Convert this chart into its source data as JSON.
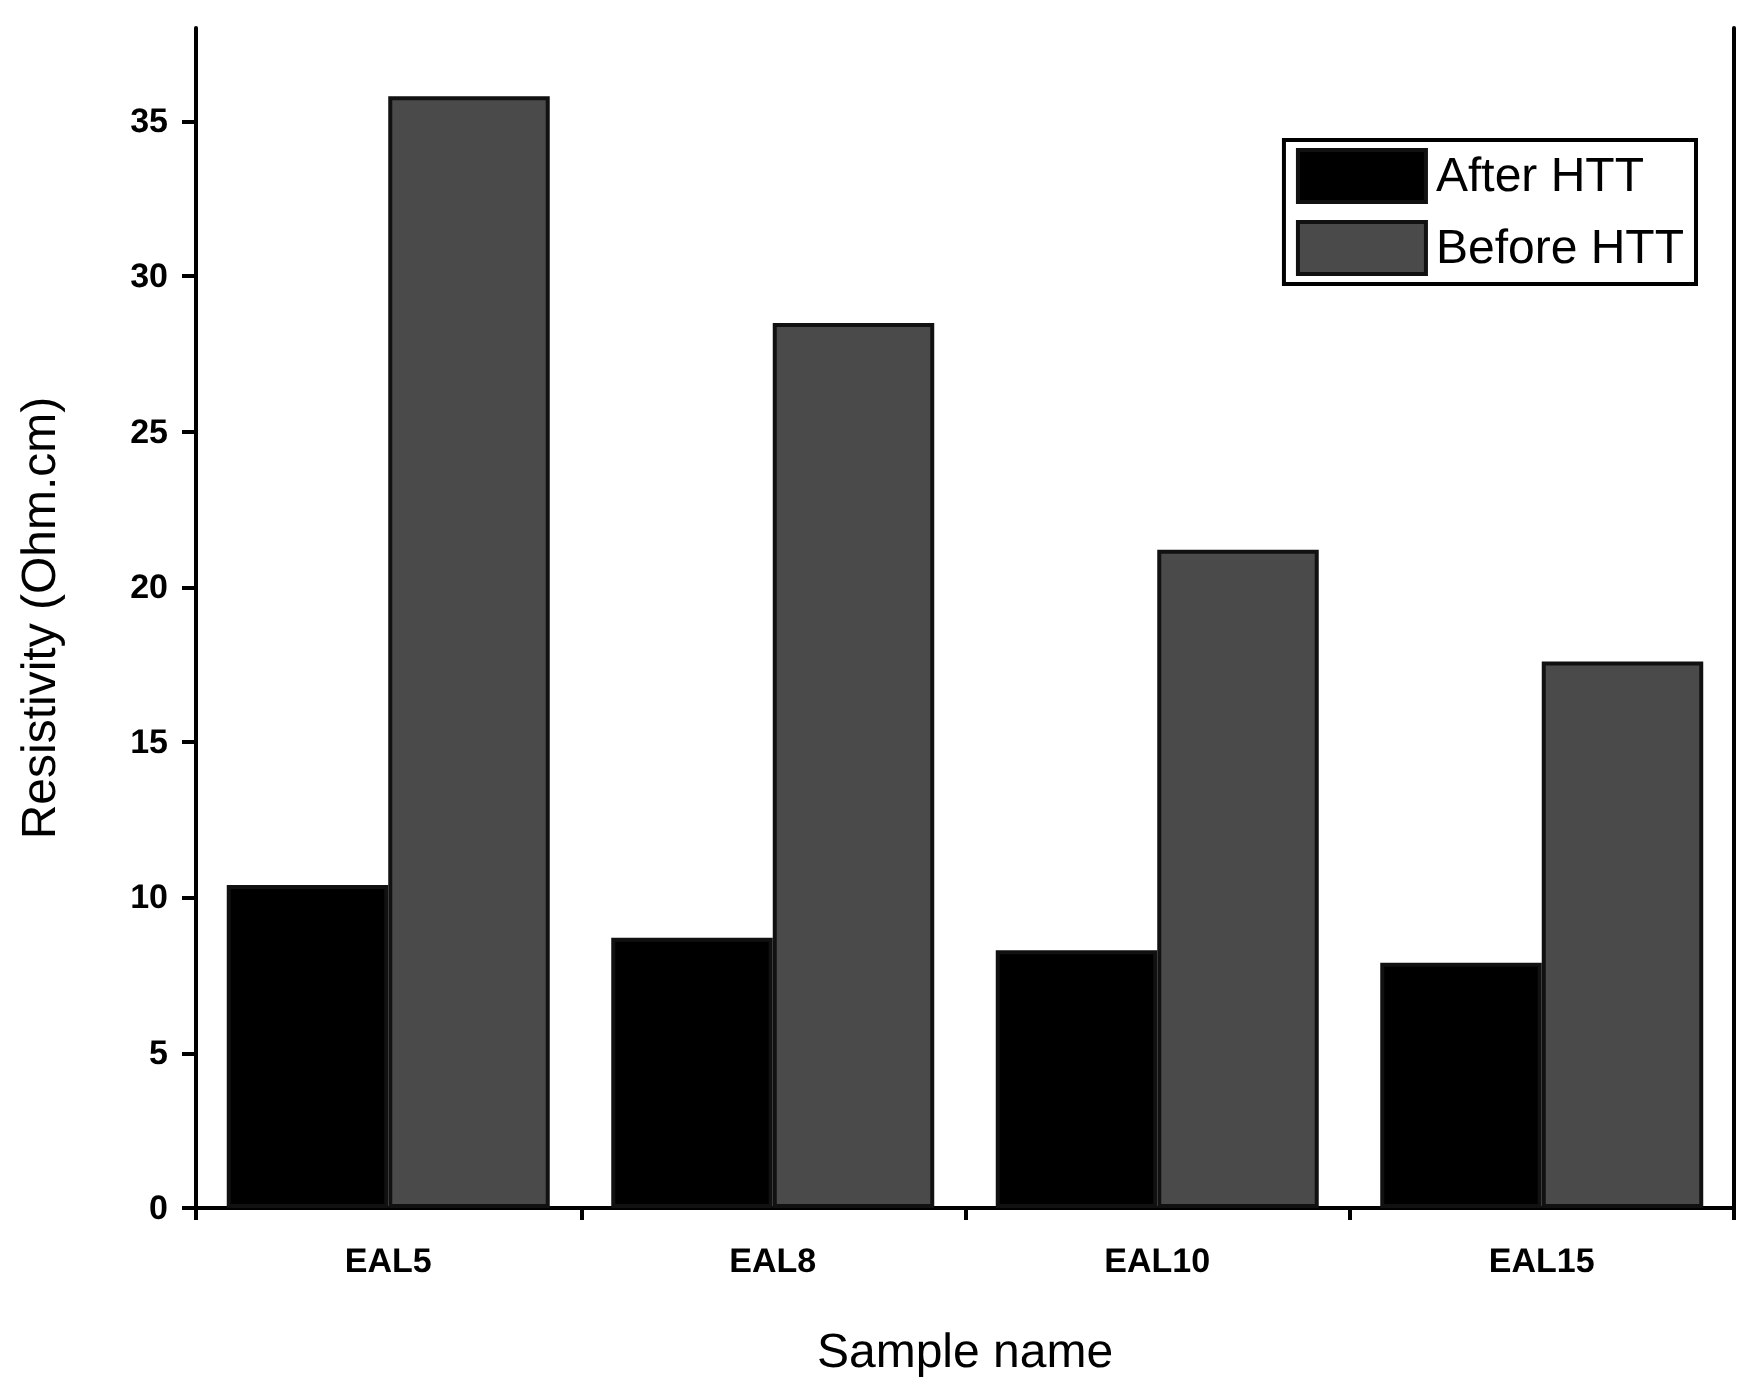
{
  "chart_data": {
    "type": "bar",
    "xlabel": "Sample name",
    "ylabel": "Resistivity (Ohm.cm)",
    "categories": [
      "EAL5",
      "EAL8",
      "EAL10",
      "EAL15"
    ],
    "series": [
      {
        "name": "After HTT",
        "color": "#000000",
        "values": [
          10.4,
          8.7,
          8.3,
          7.9
        ]
      },
      {
        "name": "Before HTT",
        "color": "#4a4a4a",
        "values": [
          35.8,
          28.5,
          21.2,
          17.6
        ]
      }
    ],
    "ylim": [
      0,
      38
    ],
    "yticks": [
      0,
      5,
      10,
      15,
      20,
      25,
      30,
      35
    ],
    "grid": false,
    "legend": "top right"
  }
}
